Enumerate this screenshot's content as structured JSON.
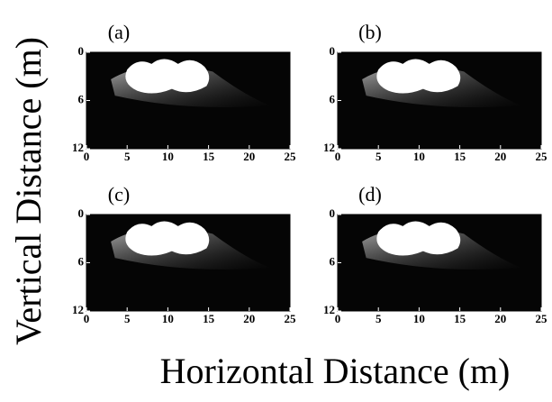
{
  "figure": {
    "xlabel": "Horizontal Distance (m)",
    "ylabel": "Vertical Distance (m)"
  },
  "chart_data": [
    {
      "type": "image",
      "label": "(a)",
      "xlim": [
        0,
        25
      ],
      "xticks": [
        0,
        5,
        10,
        15,
        20,
        25
      ],
      "ylim": [
        0,
        12
      ],
      "yticks": [
        0,
        6,
        12
      ],
      "y_inverted": true
    },
    {
      "type": "image",
      "label": "(b)",
      "xlim": [
        0,
        25
      ],
      "xticks": [
        0,
        5,
        10,
        15,
        20,
        25
      ],
      "ylim": [
        0,
        12
      ],
      "yticks": [
        0,
        6,
        12
      ],
      "y_inverted": true
    },
    {
      "type": "image",
      "label": "(c)",
      "xlim": [
        0,
        25
      ],
      "xticks": [
        0,
        5,
        10,
        15,
        20,
        25
      ],
      "ylim": [
        0,
        12
      ],
      "yticks": [
        0,
        6,
        12
      ],
      "y_inverted": true
    },
    {
      "type": "image",
      "label": "(d)",
      "xlim": [
        0,
        25
      ],
      "xticks": [
        0,
        5,
        10,
        15,
        20,
        25
      ],
      "ylim": [
        0,
        12
      ],
      "yticks": [
        0,
        6,
        12
      ],
      "y_inverted": true
    }
  ]
}
